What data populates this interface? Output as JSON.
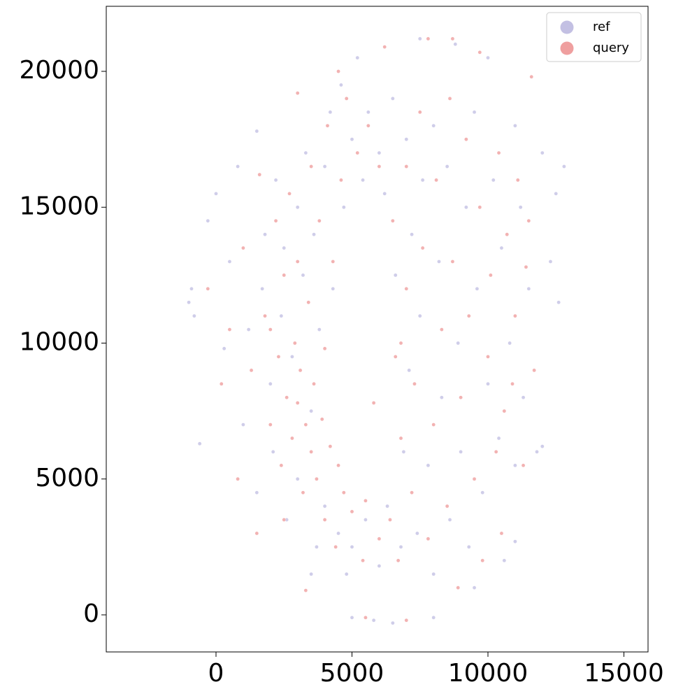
{
  "chart_data": {
    "type": "scatter",
    "legend": "upper right",
    "grid": false,
    "xlim": [
      -4036,
      15887
    ],
    "ylim": [
      -1364,
      22394
    ],
    "xticks": [
      0,
      5000,
      10000,
      15000
    ],
    "yticks": [
      0,
      5000,
      10000,
      15000,
      20000
    ],
    "series": [
      {
        "name": "ref",
        "color": "#c3c0e3",
        "x": [
          -1000,
          -900,
          -800,
          -600,
          -300,
          0,
          300,
          500,
          800,
          1000,
          1200,
          1500,
          1500,
          1700,
          1800,
          2000,
          2100,
          2200,
          2400,
          2500,
          2600,
          2800,
          3000,
          3000,
          3200,
          3300,
          3500,
          3600,
          3700,
          3800,
          4000,
          4000,
          4200,
          4300,
          4500,
          4600,
          4700,
          4800,
          5000,
          5000,
          5200,
          5400,
          5500,
          5600,
          5800,
          6000,
          6000,
          6200,
          6300,
          6500,
          6600,
          6800,
          6900,
          7000,
          7100,
          7200,
          7400,
          7500,
          7500,
          7600,
          7800,
          8000,
          8000,
          8200,
          8300,
          8500,
          8600,
          8800,
          8900,
          9000,
          9200,
          9300,
          9500,
          9600,
          9800,
          10000,
          10000,
          10200,
          10400,
          10500,
          10600,
          10800,
          11000,
          11000,
          11200,
          11300,
          11500,
          11800,
          12000,
          12300,
          12500,
          12600,
          12800,
          12000,
          11000,
          9500,
          8000,
          6500,
          5000,
          3500
        ],
        "y": [
          11500,
          12000,
          11000,
          6300,
          14500,
          15500,
          9800,
          13000,
          16500,
          7000,
          10500,
          17800,
          4500,
          12000,
          14000,
          8500,
          6000,
          16000,
          11000,
          13500,
          3500,
          9500,
          15000,
          5000,
          12500,
          17000,
          7500,
          14000,
          2500,
          10500,
          16500,
          4000,
          18500,
          12000,
          3000,
          19500,
          15000,
          1500,
          17500,
          2500,
          20500,
          16000,
          3500,
          18500,
          -200,
          1800,
          17000,
          15500,
          4000,
          19000,
          12500,
          2500,
          6000,
          17500,
          9000,
          14000,
          3000,
          21200,
          11000,
          16000,
          5500,
          18000,
          1500,
          13000,
          8000,
          16500,
          3500,
          21000,
          10000,
          6000,
          15000,
          2500,
          18500,
          12000,
          4500,
          8500,
          20500,
          16000,
          6500,
          13500,
          2000,
          10000,
          18000,
          5500,
          15000,
          8000,
          12000,
          6000,
          17000,
          13000,
          15500,
          11500,
          16500,
          6200,
          2700,
          1000,
          -100,
          -300,
          -100,
          1500
        ]
      },
      {
        "name": "query",
        "color": "#ef9f9f",
        "x": [
          -300,
          200,
          500,
          800,
          1000,
          1300,
          1500,
          1600,
          1800,
          2000,
          2200,
          2300,
          2400,
          2500,
          2600,
          2700,
          2800,
          2900,
          3000,
          3000,
          3100,
          3200,
          3300,
          3400,
          3500,
          3500,
          3600,
          3700,
          3800,
          3900,
          4000,
          4000,
          4100,
          4200,
          4300,
          4400,
          4500,
          4600,
          4700,
          4800,
          5000,
          5200,
          5400,
          5500,
          5600,
          5800,
          6000,
          6000,
          6200,
          6400,
          6500,
          6600,
          6700,
          6800,
          7000,
          7000,
          7200,
          7300,
          7500,
          7600,
          7800,
          8000,
          8100,
          8300,
          8500,
          8600,
          8700,
          8900,
          9000,
          9200,
          9300,
          9500,
          9700,
          9800,
          10000,
          10100,
          10300,
          10400,
          10500,
          10700,
          10900,
          11000,
          11100,
          11300,
          11500,
          11600,
          11700,
          11400,
          10600,
          9700,
          8700,
          7800,
          4500,
          3000,
          2000,
          2500,
          3300,
          5500,
          7000,
          6800
        ],
        "y": [
          12000,
          8500,
          10500,
          5000,
          13500,
          9000,
          3000,
          16200,
          11000,
          7000,
          14500,
          9500,
          5500,
          12500,
          8000,
          15500,
          6500,
          10000,
          7800,
          13000,
          9000,
          4500,
          7000,
          11500,
          6000,
          16500,
          8500,
          5000,
          14500,
          7200,
          3500,
          9800,
          18000,
          6200,
          13000,
          2500,
          5500,
          16000,
          4500,
          19000,
          3800,
          17000,
          2000,
          4200,
          18000,
          7800,
          2800,
          16500,
          20900,
          3500,
          14500,
          9500,
          2000,
          6500,
          12000,
          16500,
          4500,
          8500,
          18500,
          13500,
          2800,
          7000,
          16000,
          10500,
          4000,
          19000,
          13000,
          1000,
          8000,
          17500,
          11000,
          5000,
          15000,
          2000,
          9500,
          12500,
          6000,
          17000,
          3000,
          14000,
          8500,
          11000,
          16000,
          5500,
          14500,
          19800,
          9000,
          12800,
          7500,
          20700,
          21200,
          21200,
          20000,
          19200,
          10500,
          3500,
          900,
          -100,
          -200,
          10000
        ]
      }
    ]
  }
}
